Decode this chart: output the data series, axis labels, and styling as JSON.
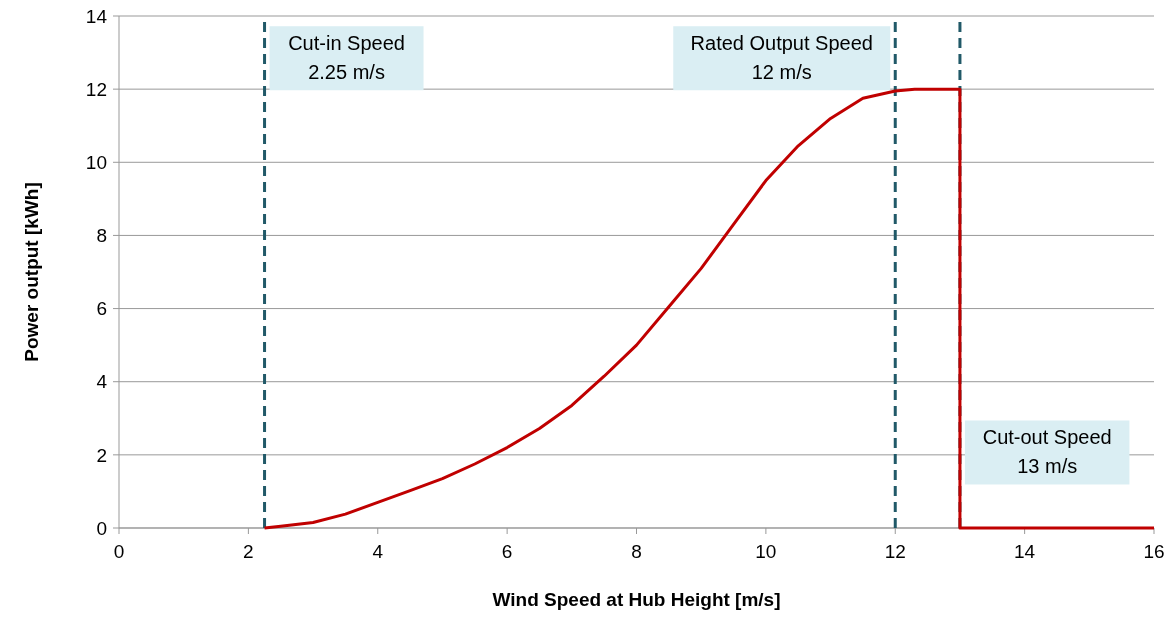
{
  "chart_data": {
    "type": "line",
    "xlabel": "Wind Speed at Hub Height [m/s]",
    "ylabel": "Power output [kWh]",
    "xlim": [
      0,
      16
    ],
    "xticks": [
      0,
      2,
      4,
      6,
      8,
      10,
      12,
      14,
      16
    ],
    "ylim": [
      0,
      14
    ],
    "yticks": [
      0,
      2,
      4,
      6,
      8,
      10,
      12,
      14
    ],
    "grid": "y",
    "marker": "none",
    "line_style": "solid",
    "series": [
      {
        "color": "#c00000",
        "x": [
          2.25,
          2.5,
          3,
          3.5,
          4,
          4.5,
          5,
          5.5,
          6,
          6.5,
          7,
          7.5,
          8,
          8.5,
          9,
          9.5,
          10,
          10.5,
          11,
          11.5,
          12,
          12.3,
          13,
          13,
          14,
          15,
          16
        ],
        "values": [
          0,
          0.05,
          0.15,
          0.38,
          0.7,
          1.02,
          1.35,
          1.75,
          2.2,
          2.72,
          3.35,
          4.15,
          5.0,
          6.05,
          7.1,
          8.3,
          9.5,
          10.45,
          11.2,
          11.75,
          11.95,
          12,
          12,
          0,
          0,
          0,
          0
        ]
      }
    ],
    "ref_lines": [
      {
        "axis": "x",
        "value": 2.25,
        "label": "Cut-in Speed\n2.25 m/s",
        "color": "#215968",
        "line_style": "dashed"
      },
      {
        "axis": "x",
        "value": 12,
        "label": "Rated Output Speed\n12 m/s",
        "color": "#215968",
        "line_style": "dashed"
      },
      {
        "axis": "x",
        "value": 13,
        "label": "Cut-out Speed\n13 m/s",
        "color": "#215968",
        "line_style": "dashed"
      }
    ]
  }
}
